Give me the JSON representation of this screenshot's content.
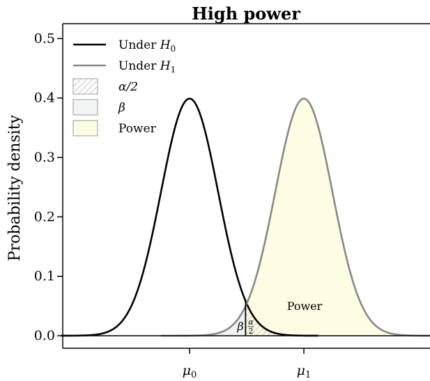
{
  "chart_data": {
    "type": "area",
    "title": "High power",
    "xlabel": "",
    "ylabel": "Probability density",
    "xlim": [
      -5.5,
      8.5
    ],
    "ylim": [
      0,
      0.52
    ],
    "yticks": [
      0.0,
      0.1,
      0.2,
      0.3,
      0.4,
      0.5
    ],
    "ytick_labels": [
      "0.0",
      "0.1",
      "0.2",
      "0.3",
      "0.4",
      "0.5"
    ],
    "xticks": [
      {
        "value": 0,
        "label": "μ",
        "sub": "0"
      },
      {
        "value": 4,
        "label": "μ",
        "sub": "1"
      }
    ],
    "critical_value": 1.96,
    "series": [
      {
        "name": "Under H0",
        "distribution": "normal",
        "mean": 0,
        "sd": 1,
        "x_range": [
          -4.5,
          4.5
        ],
        "color": "#000000"
      },
      {
        "name": "Under H1",
        "distribution": "normal",
        "mean": 4,
        "sd": 1,
        "x_range": [
          -1,
          8.5
        ],
        "color": "#888888"
      }
    ],
    "legend": {
      "position": "top-left",
      "items": [
        {
          "kind": "line",
          "label": "Under",
          "math": "H",
          "sub": "0",
          "color": "#000000"
        },
        {
          "kind": "line",
          "label": "Under",
          "math": "H",
          "sub": "1",
          "color": "#888888"
        },
        {
          "kind": "hatch",
          "label": "α/2",
          "fill": "#ffffff"
        },
        {
          "kind": "box",
          "label": "β",
          "fill": "#f1f3f5"
        },
        {
          "kind": "box",
          "label": "Power",
          "fill": "#fdfde3"
        }
      ]
    },
    "annotations": {
      "power": "Power",
      "beta": "β",
      "alpha_num": "α",
      "alpha_den": "2"
    },
    "colors": {
      "power_fill": "#fdfde3",
      "beta_fill": "#f1f3f5",
      "hatch": "#c4c4c4",
      "h0": "#000000",
      "h1": "#888888"
    },
    "grid": false
  }
}
